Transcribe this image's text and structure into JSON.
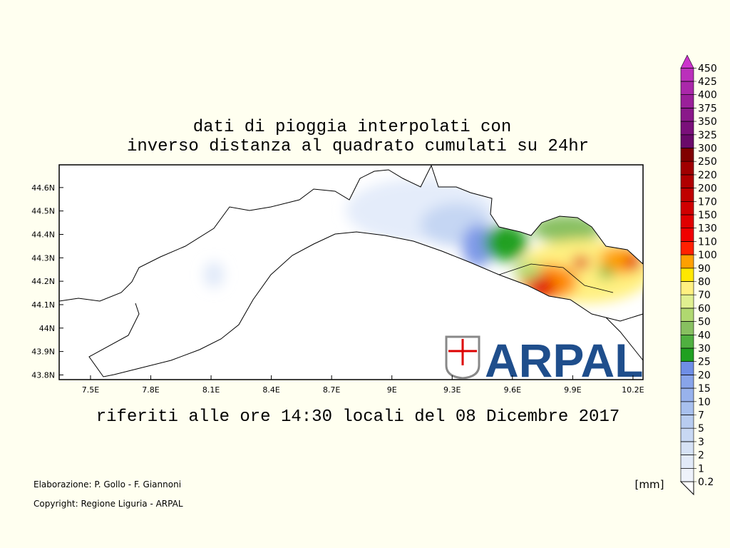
{
  "title": [
    "dati di pioggia interpolati con",
    "inverso distanza al quadrato cumulati su 24hr"
  ],
  "map": {
    "lonlim": [
      7.344,
      10.25
    ],
    "latlim": [
      43.78,
      44.697
    ],
    "lon_ticks": [
      {
        "value": 7.5,
        "label": "7.5E"
      },
      {
        "value": 7.8,
        "label": "7.8E"
      },
      {
        "value": 8.1,
        "label": "8.1E"
      },
      {
        "value": 8.4,
        "label": "8.4E"
      },
      {
        "value": 8.7,
        "label": "8.7E"
      },
      {
        "value": 9,
        "label": "9E"
      },
      {
        "value": 9.3,
        "label": "9.3E"
      },
      {
        "value": 9.6,
        "label": "9.6E"
      },
      {
        "value": 9.9,
        "label": "9.9E"
      },
      {
        "value": 10.2,
        "label": "10.2E"
      }
    ],
    "lat_ticks": [
      {
        "value": 43.8,
        "label": "43.8N"
      },
      {
        "value": 43.9,
        "label": "43.9N"
      },
      {
        "value": 44,
        "label": "44N"
      },
      {
        "value": 44.1,
        "label": "44.1N"
      },
      {
        "value": 44.2,
        "label": "44.2N"
      },
      {
        "value": 44.3,
        "label": "44.3N"
      },
      {
        "value": 44.4,
        "label": "44.4N"
      },
      {
        "value": 44.5,
        "label": "44.5N"
      },
      {
        "value": 44.6,
        "label": "44.6N"
      }
    ]
  },
  "subtitle": "riferiti alle ore 14:30 locali del 08 Dicembre 2017",
  "logo": "ARPAL",
  "legend": {
    "levels": [
      0.2,
      1,
      2,
      3,
      5,
      7,
      10,
      15,
      20,
      25,
      30,
      40,
      50,
      60,
      70,
      80,
      90,
      100,
      110,
      130,
      150,
      170,
      200,
      220,
      250,
      300,
      325,
      350,
      375,
      400,
      425,
      450
    ],
    "colors": [
      "#eef2fb",
      "#e2eaf8",
      "#d6e2f5",
      "#c8d8f3",
      "#b8ccf0",
      "#a8c0ee",
      "#98b2ec",
      "#88a4ea",
      "#6f8ee6",
      "#20a020",
      "#50b040",
      "#88c060",
      "#b0d870",
      "#e0f090",
      "#fff080",
      "#ffe800",
      "#ffa000",
      "#ff2000",
      "#f00000",
      "#e00000",
      "#d00000",
      "#c00000",
      "#b00000",
      "#a00000",
      "#800000",
      "#6a0a6a",
      "#7a107a",
      "#8a188a",
      "#9a209a",
      "#aa28aa",
      "#bb30bb",
      "#cc33cc"
    ],
    "unit": "[mm]"
  },
  "credits": [
    "Elaborazione: P. Gollo - F. Giannoni",
    "Copyright: Regione Liguria - ARPAL"
  ]
}
